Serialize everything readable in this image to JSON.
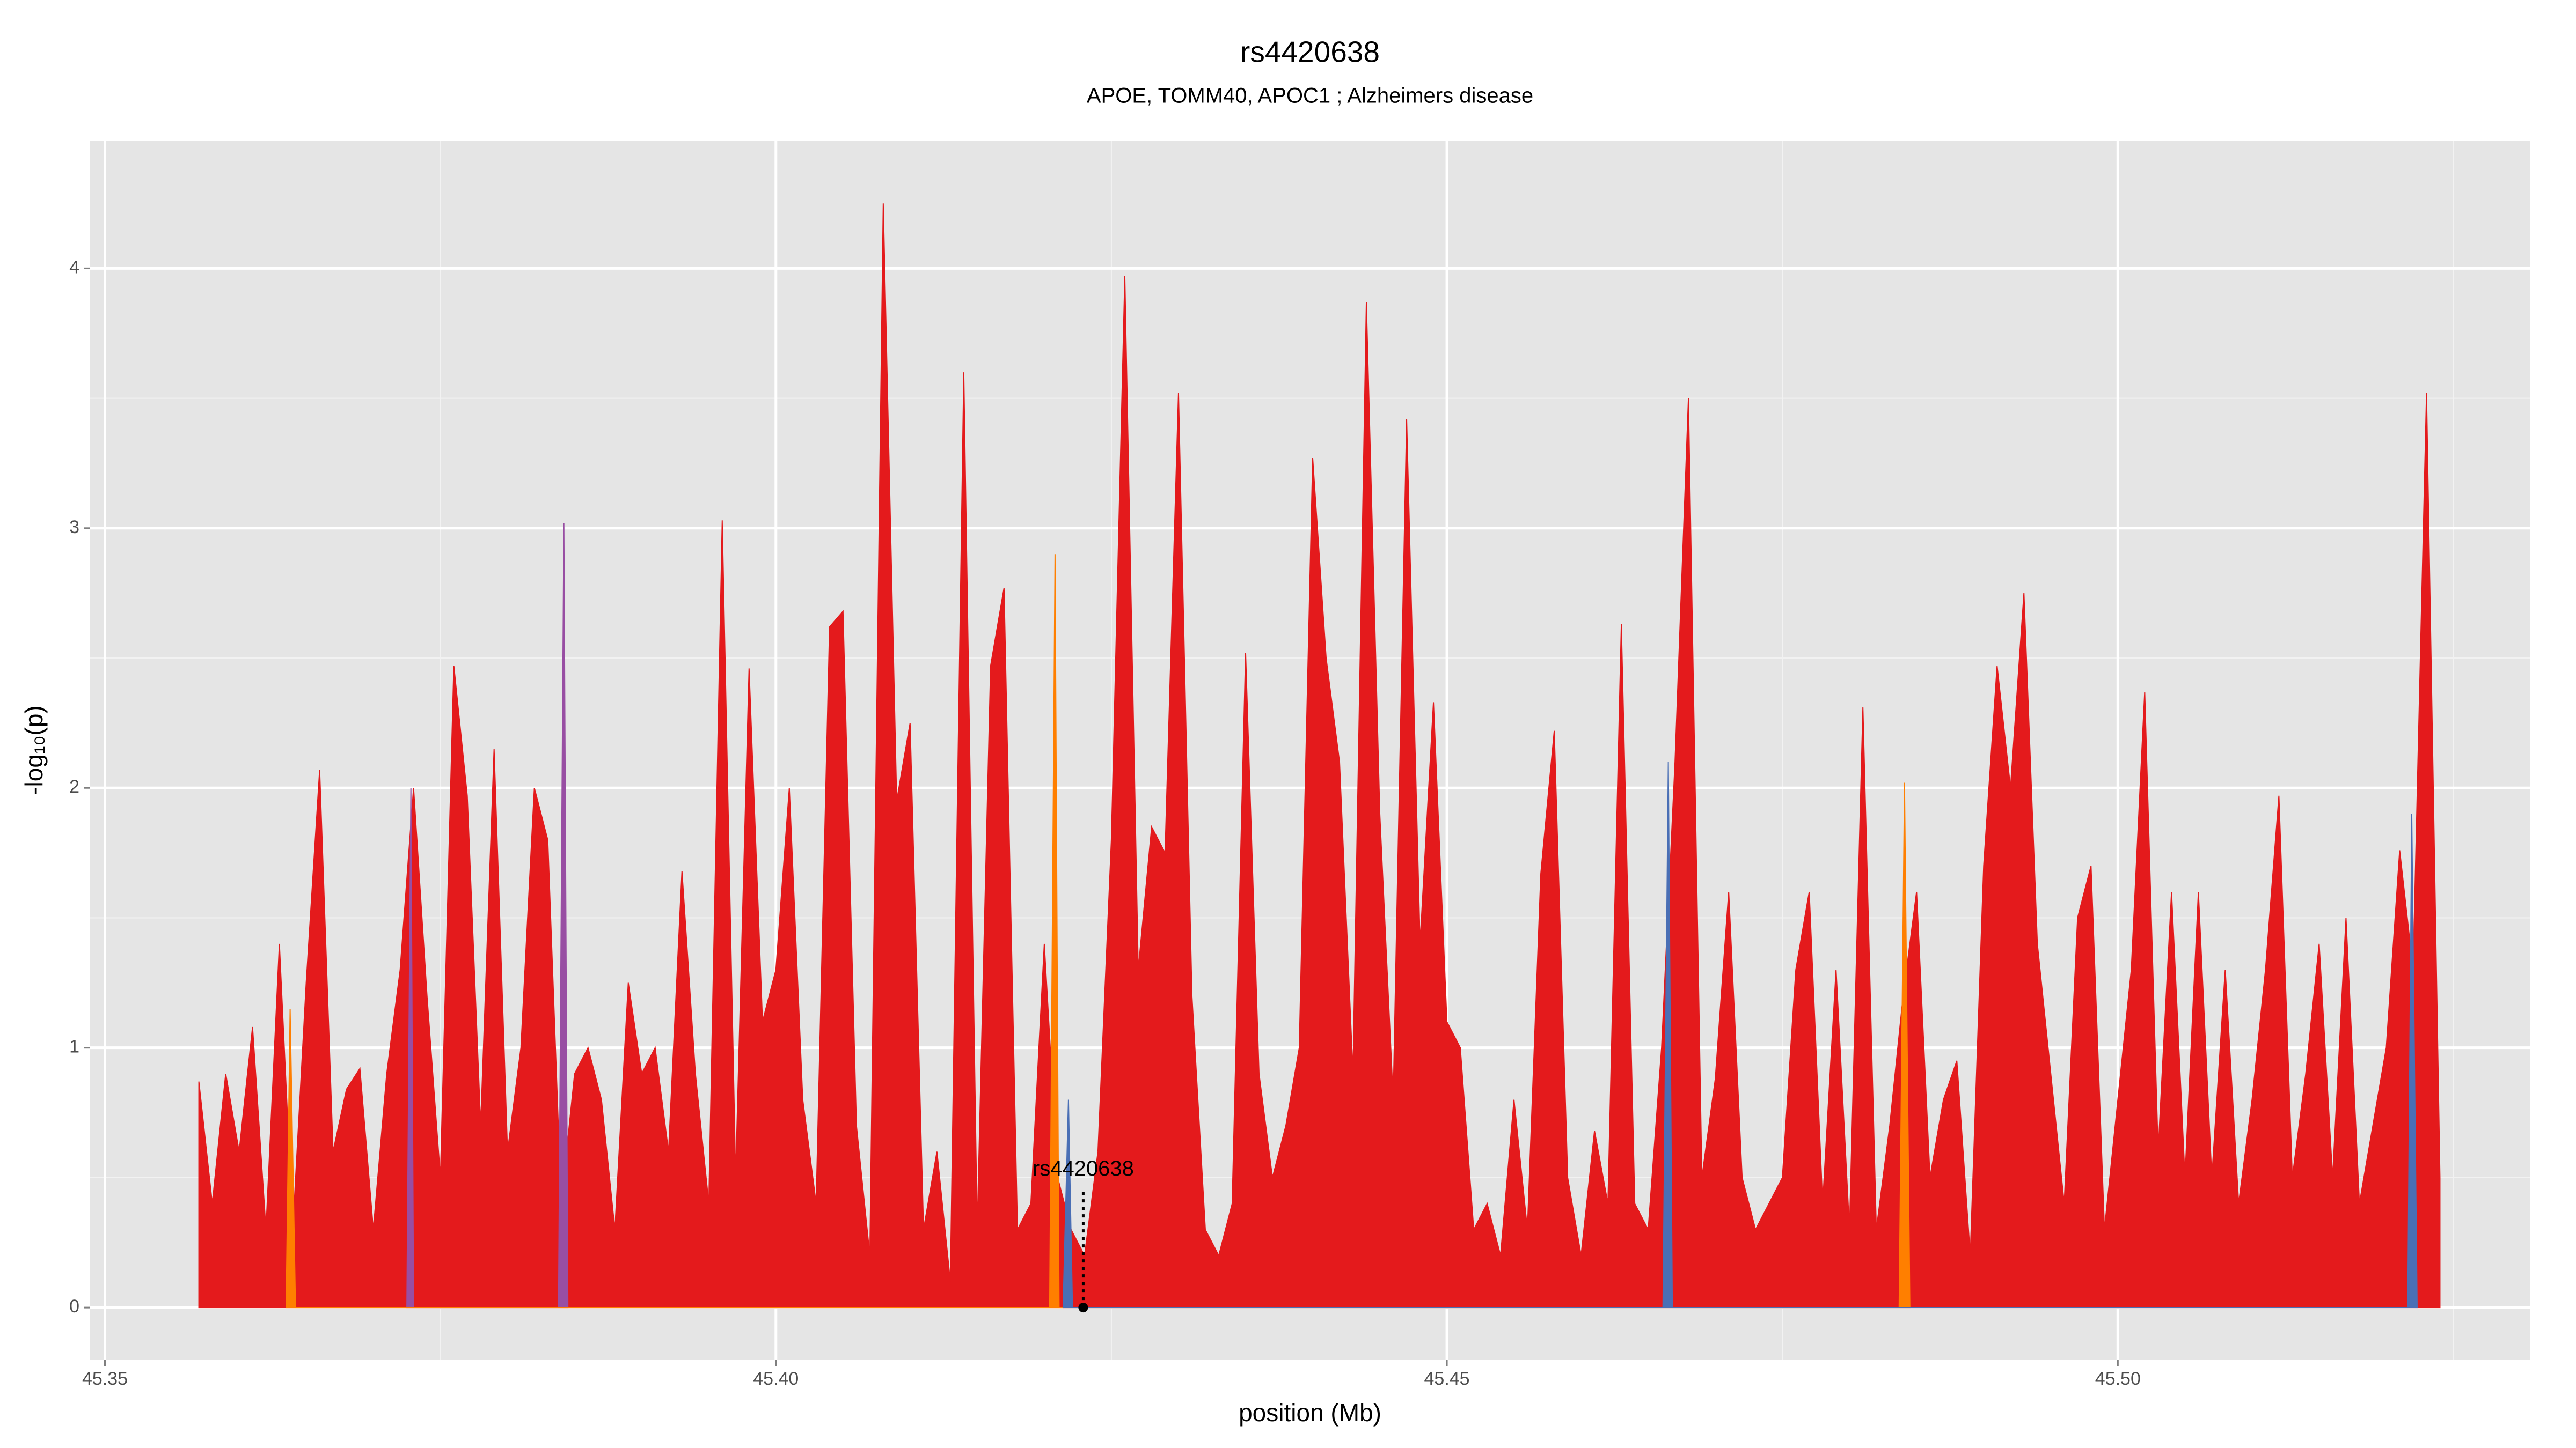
{
  "chart_data": {
    "type": "area",
    "title": "rs4420638",
    "subtitle": "APOE, TOMM40, APOC1 ; Alzheimers disease",
    "x_label": "position (Mb)",
    "y_label": "-log₁₀(p)",
    "xlim": [
      45.3489,
      45.5307
    ],
    "ylim": [
      -0.2,
      4.49
    ],
    "xticks": [
      45.35,
      {
        "value": 45.4,
        "label": "45.40"
      },
      45.45,
      {
        "value": 45.5,
        "label": "45.50"
      }
    ],
    "yticks": [
      0,
      1,
      2,
      3,
      4
    ],
    "grid": true,
    "series": [
      {
        "color": "#e41a1c",
        "x": [
          45.357,
          45.358,
          45.359,
          45.36,
          45.361,
          45.362,
          45.363,
          45.364,
          45.365,
          45.366,
          45.367,
          45.368,
          45.369,
          45.37,
          45.371,
          45.372,
          45.373,
          45.374,
          45.375,
          45.376,
          45.377,
          45.378,
          45.379,
          45.38,
          45.381,
          45.382,
          45.383,
          45.384,
          45.385,
          45.386,
          45.387,
          45.388,
          45.389,
          45.39,
          45.391,
          45.392,
          45.393,
          45.394,
          45.395,
          45.396,
          45.397,
          45.398,
          45.399,
          45.4,
          45.401,
          45.402,
          45.403,
          45.404,
          45.405,
          45.406,
          45.407,
          45.408,
          45.409,
          45.41,
          45.411,
          45.412,
          45.413,
          45.414,
          45.415,
          45.416,
          45.417,
          45.418,
          45.419,
          45.42,
          45.421,
          45.422,
          45.423,
          45.424,
          45.425,
          45.426,
          45.427,
          45.428,
          45.429,
          45.43,
          45.431,
          45.432,
          45.433,
          45.434,
          45.435,
          45.436,
          45.437,
          45.438,
          45.439,
          45.44,
          45.441,
          45.442,
          45.443,
          45.444,
          45.445,
          45.446,
          45.447,
          45.448,
          45.449,
          45.45,
          45.451,
          45.452,
          45.453,
          45.454,
          45.455,
          45.456,
          45.457,
          45.458,
          45.459,
          45.46,
          45.461,
          45.462,
          45.463,
          45.464,
          45.465,
          45.466,
          45.467,
          45.468,
          45.469,
          45.47,
          45.471,
          45.472,
          45.473,
          45.474,
          45.475,
          45.476,
          45.477,
          45.478,
          45.479,
          45.48,
          45.481,
          45.482,
          45.483,
          45.484,
          45.485,
          45.486,
          45.487,
          45.488,
          45.489,
          45.49,
          45.491,
          45.492,
          45.493,
          45.494,
          45.495,
          45.496,
          45.497,
          45.498,
          45.499,
          45.5,
          45.501,
          45.502,
          45.503,
          45.504,
          45.505,
          45.506,
          45.507,
          45.508,
          45.509,
          45.51,
          45.511,
          45.512,
          45.513,
          45.514,
          45.515,
          45.516,
          45.517,
          45.518,
          45.519,
          45.52,
          45.521,
          45.522,
          45.523,
          45.524
        ],
        "values": [
          0.87,
          0.4,
          0.9,
          0.6,
          1.08,
          0.3,
          1.4,
          0.3,
          1.25,
          2.07,
          0.6,
          0.84,
          0.92,
          0.3,
          0.9,
          1.3,
          2.0,
          1.2,
          0.5,
          2.47,
          1.97,
          0.7,
          2.15,
          0.6,
          1.0,
          2.0,
          1.8,
          0.4,
          0.9,
          1.0,
          0.8,
          0.3,
          1.25,
          0.9,
          1.0,
          0.6,
          1.68,
          0.9,
          0.4,
          3.03,
          0.5,
          2.46,
          1.1,
          1.3,
          2.0,
          0.8,
          0.4,
          2.62,
          2.68,
          0.7,
          0.2,
          4.25,
          1.95,
          2.25,
          0.3,
          0.6,
          0.1,
          3.6,
          0.3,
          2.47,
          2.77,
          0.3,
          0.4,
          1.4,
          0.5,
          0.3,
          0.2,
          0.6,
          1.8,
          3.97,
          1.3,
          1.85,
          1.75,
          3.52,
          1.2,
          0.3,
          0.2,
          0.4,
          2.52,
          0.9,
          0.5,
          0.7,
          1.0,
          3.27,
          2.5,
          2.1,
          0.9,
          3.87,
          1.9,
          0.8,
          3.42,
          1.4,
          2.33,
          1.1,
          1.0,
          0.3,
          0.4,
          0.2,
          0.8,
          0.3,
          1.67,
          2.22,
          0.5,
          0.2,
          0.68,
          0.4,
          2.63,
          0.4,
          0.3,
          1.0,
          2.1,
          3.5,
          0.5,
          0.88,
          1.6,
          0.5,
          0.3,
          0.4,
          0.5,
          1.3,
          1.6,
          0.4,
          1.3,
          0.3,
          2.31,
          0.3,
          0.7,
          1.2,
          1.6,
          0.5,
          0.8,
          0.95,
          0.2,
          1.7,
          2.47,
          2.0,
          2.75,
          1.4,
          0.9,
          0.4,
          1.5,
          1.7,
          0.3,
          0.8,
          1.3,
          2.37,
          0.6,
          1.6,
          0.5,
          1.6,
          0.5,
          1.3,
          0.4,
          0.8,
          1.3,
          1.97,
          0.5,
          0.9,
          1.4,
          0.5,
          1.5,
          0.4,
          0.7,
          1.0,
          1.76,
          1.3,
          3.52,
          0.5
        ]
      },
      {
        "color": "#984ea3",
        "x": [
          45.3725,
          45.3728,
          45.373,
          45.3838,
          45.3842,
          45.3845
        ],
        "values": [
          0,
          2.0,
          0,
          0,
          3.02,
          0
        ]
      },
      {
        "color": "#ff7f00",
        "x": [
          45.3635,
          45.3638,
          45.3642,
          45.4204,
          45.4208,
          45.4211,
          45.4837,
          45.4841,
          45.4845
        ],
        "values": [
          0,
          1.15,
          0,
          0,
          2.9,
          0,
          0,
          2.02,
          0
        ]
      },
      {
        "color": "#4a6fb5",
        "x": [
          45.4214,
          45.4218,
          45.4221,
          45.4661,
          45.4665,
          45.4668,
          45.5216,
          45.5219,
          45.5223
        ],
        "values": [
          0,
          0.8,
          0,
          0,
          2.1,
          0,
          0,
          1.9,
          0
        ]
      }
    ],
    "annotation": {
      "text": "rs4420638",
      "x": 45.4229,
      "y": 0
    }
  }
}
